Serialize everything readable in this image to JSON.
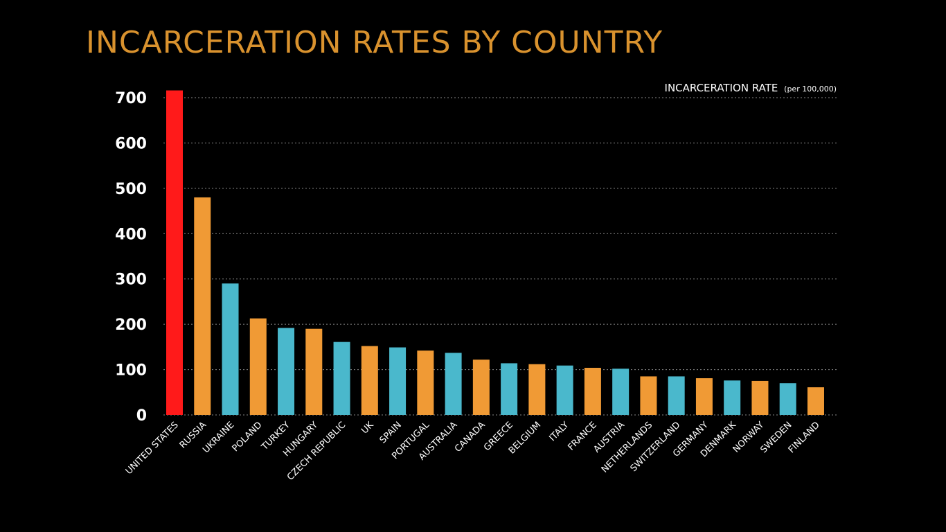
{
  "chart_data": {
    "type": "bar",
    "title": "INCARCERATION RATES BY COUNTRY",
    "ylabel": "INCARCERATION RATE",
    "ylabel_unit": "(per 100,000)",
    "xlabel": "",
    "ylim": [
      0,
      700
    ],
    "yticks": [
      0,
      100,
      200,
      300,
      400,
      500,
      600,
      700
    ],
    "grid": true,
    "categories": [
      "UNITED STATES",
      "RUSSIA",
      "UKRAINE",
      "POLAND",
      "TURKEY",
      "HUNGARY",
      "CZECH REPUBLIC",
      "UK",
      "SPAIN",
      "PORTUGAL",
      "AUSTRALIA",
      "CANADA",
      "GREECE",
      "BELGIUM",
      "ITALY",
      "FRANCE",
      "AUSTRIA",
      "NETHERLANDS",
      "SWITZERLAND",
      "GERMANY",
      "DENMARK",
      "NORWAY",
      "SWEDEN",
      "FINLAND"
    ],
    "values": [
      716,
      480,
      290,
      213,
      192,
      190,
      161,
      152,
      149,
      142,
      137,
      122,
      114,
      112,
      109,
      104,
      102,
      85,
      85,
      81,
      76,
      75,
      70,
      61
    ],
    "bar_colors": [
      "#ff1a1a",
      "#f09a35",
      "#4ab8cc",
      "#f09a35",
      "#4ab8cc",
      "#f09a35",
      "#4ab8cc",
      "#f09a35",
      "#4ab8cc",
      "#f09a35",
      "#4ab8cc",
      "#f09a35",
      "#4ab8cc",
      "#f09a35",
      "#4ab8cc",
      "#f09a35",
      "#4ab8cc",
      "#f09a35",
      "#4ab8cc",
      "#f09a35",
      "#4ab8cc",
      "#f09a35",
      "#4ab8cc",
      "#f09a35"
    ],
    "colors": {
      "background": "#000000",
      "title": "#d9922e",
      "highlight": "#ff1a1a",
      "orange": "#f09a35",
      "blue": "#4ab8cc",
      "text": "#ffffff",
      "grid": "#8a8a8a"
    }
  }
}
